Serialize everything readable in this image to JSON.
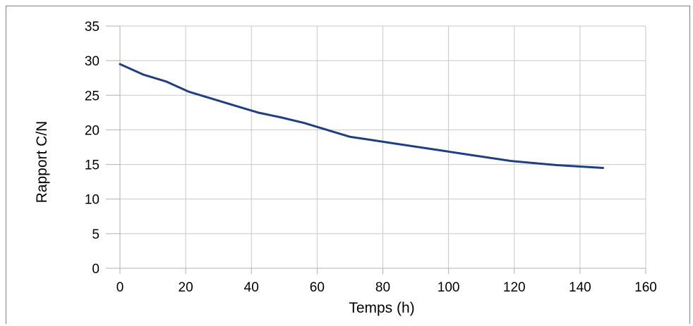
{
  "chart_data": {
    "type": "line",
    "title": "",
    "xlabel": "Temps (h)",
    "ylabel": "Rapport C/N",
    "xlim": [
      0,
      160
    ],
    "ylim": [
      0,
      35
    ],
    "xticks": [
      0,
      20,
      40,
      60,
      80,
      100,
      120,
      140,
      160
    ],
    "yticks": [
      0,
      5,
      10,
      15,
      20,
      25,
      30,
      35
    ],
    "grid": true,
    "legend": "none",
    "series": [
      {
        "color": "#1f3f7f",
        "x": [
          0,
          7,
          14,
          21,
          28,
          35,
          42,
          49,
          56,
          63,
          70,
          77,
          84,
          91,
          98,
          105,
          112,
          119,
          126,
          133,
          140,
          147
        ],
        "y": [
          29.5,
          28.0,
          27.0,
          25.5,
          24.5,
          23.5,
          22.5,
          21.8,
          21.0,
          20.0,
          19.0,
          18.5,
          18.0,
          17.5,
          17.0,
          16.5,
          16.0,
          15.5,
          15.2,
          14.9,
          14.7,
          14.5
        ]
      }
    ]
  }
}
